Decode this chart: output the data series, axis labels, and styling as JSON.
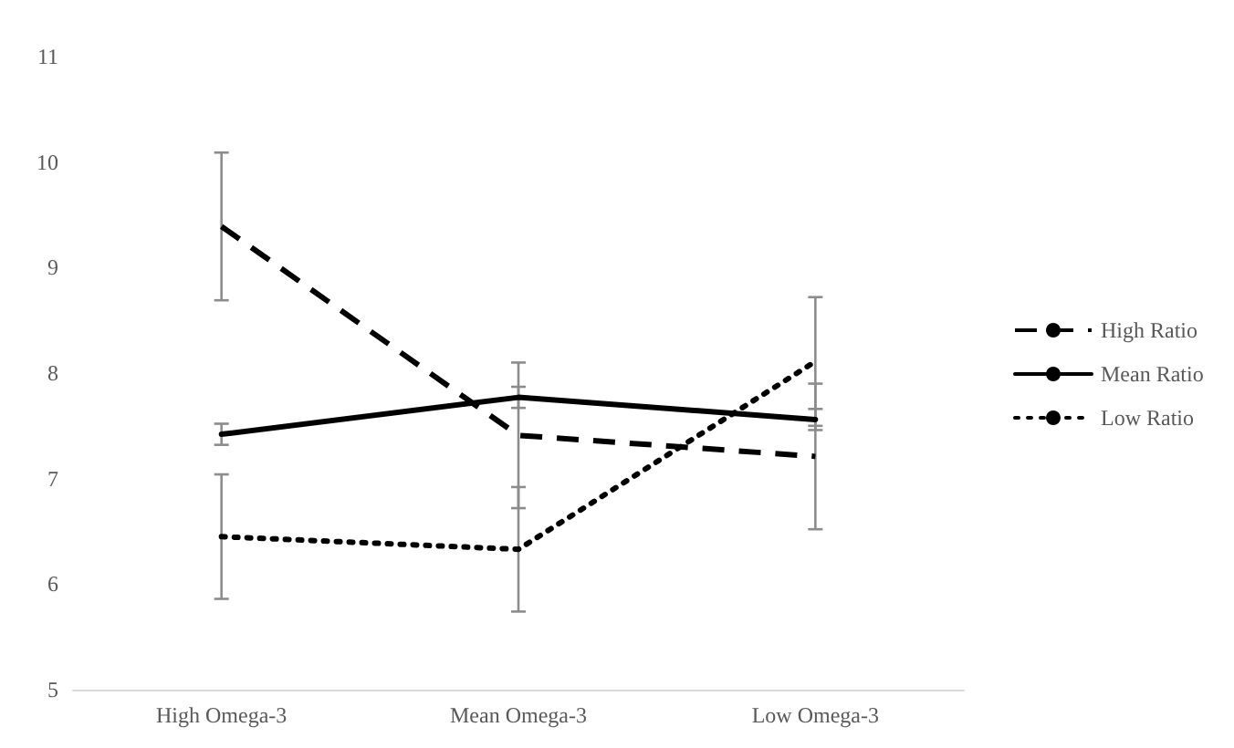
{
  "chart_data": {
    "type": "line",
    "categories": [
      "High Omega-3",
      "Mean Omega-3",
      "Low Omega-3"
    ],
    "series": [
      {
        "name": "High Ratio",
        "color": "#000000",
        "line_style": "dashed",
        "values": [
          9.39,
          7.41,
          7.21
        ],
        "errors": [
          0.7,
          0.69,
          0.69
        ]
      },
      {
        "name": "Mean Ratio",
        "color": "#000000",
        "line_style": "solid",
        "values": [
          7.42,
          7.77,
          7.56
        ],
        "errors": [
          0.1,
          0.1,
          0.1
        ]
      },
      {
        "name": "Low Ratio",
        "color": "#000000",
        "line_style": "dotted",
        "values": [
          6.45,
          6.33,
          8.11
        ],
        "errors": [
          0.59,
          0.59,
          0.61
        ]
      }
    ],
    "ylim": [
      5,
      11
    ],
    "yticks": [
      5,
      6,
      7,
      8,
      9,
      10,
      11
    ],
    "grid": false,
    "legend": "right",
    "marker": "none"
  }
}
